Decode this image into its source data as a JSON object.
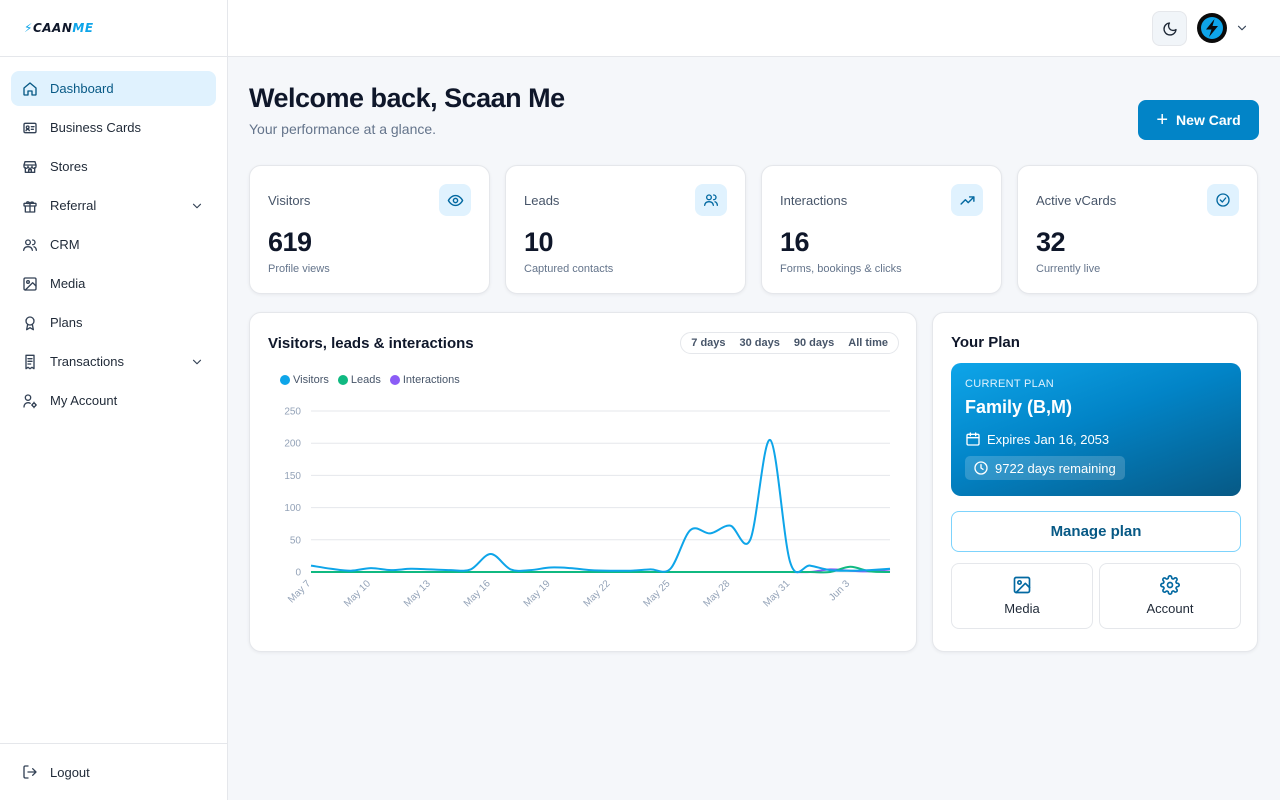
{
  "brand": {
    "logo_bolt": "⚡",
    "logo_main": "CAAN",
    "logo_accent": "ME"
  },
  "sidebar": {
    "items": [
      {
        "label": "Dashboard",
        "icon": "home-icon",
        "active": true
      },
      {
        "label": "Business Cards",
        "icon": "id-card-icon"
      },
      {
        "label": "Stores",
        "icon": "store-icon"
      },
      {
        "label": "Referral",
        "icon": "gift-icon",
        "expandable": true
      },
      {
        "label": "CRM",
        "icon": "users-icon"
      },
      {
        "label": "Media",
        "icon": "image-icon"
      },
      {
        "label": "Plans",
        "icon": "award-icon"
      },
      {
        "label": "Transactions",
        "icon": "receipt-icon",
        "expandable": true
      },
      {
        "label": "My Account",
        "icon": "user-cog-icon"
      }
    ],
    "logout_label": "Logout"
  },
  "header": {
    "title": "Welcome back, Scaan Me",
    "subtitle": "Your performance at a glance.",
    "new_card_label": "New Card"
  },
  "stats": [
    {
      "label": "Visitors",
      "value": "619",
      "sub": "Profile views",
      "icon": "eye-icon"
    },
    {
      "label": "Leads",
      "value": "10",
      "sub": "Captured contacts",
      "icon": "users-icon"
    },
    {
      "label": "Interactions",
      "value": "16",
      "sub": "Forms, bookings & clicks",
      "icon": "trending-up-icon"
    },
    {
      "label": "Active vCards",
      "value": "32",
      "sub": "Currently live",
      "icon": "check-circle-icon"
    }
  ],
  "chart": {
    "title": "Visitors, leads & interactions",
    "ranges": [
      "7 days",
      "30 days",
      "90 days",
      "All time"
    ]
  },
  "chart_data": {
    "type": "line",
    "ylim": [
      0,
      250
    ],
    "yticks": [
      0,
      50,
      100,
      150,
      200,
      250
    ],
    "xtick_labels": [
      "May 7",
      "May 10",
      "May 13",
      "May 16",
      "May 19",
      "May 22",
      "May 25",
      "May 28",
      "May 31",
      "Jun 3"
    ],
    "x": [
      "May 7",
      "May 8",
      "May 9",
      "May 10",
      "May 11",
      "May 12",
      "May 13",
      "May 14",
      "May 15",
      "May 16",
      "May 17",
      "May 18",
      "May 19",
      "May 20",
      "May 21",
      "May 22",
      "May 23",
      "May 24",
      "May 25",
      "May 26",
      "May 27",
      "May 28",
      "May 29",
      "May 30",
      "May 31",
      "Jun 1",
      "Jun 2",
      "Jun 3",
      "Jun 4",
      "Jun 5"
    ],
    "series": [
      {
        "name": "Visitors",
        "color": "#0ea5e9",
        "values": [
          10,
          5,
          2,
          6,
          3,
          5,
          4,
          3,
          4,
          28,
          4,
          3,
          7,
          6,
          3,
          2,
          2,
          4,
          5,
          65,
          60,
          72,
          50,
          205,
          15,
          10,
          3,
          2,
          3,
          5
        ]
      },
      {
        "name": "Leads",
        "color": "#10b981",
        "values": [
          0,
          0,
          0,
          0,
          0,
          0,
          0,
          0,
          0,
          0,
          0,
          0,
          0,
          0,
          0,
          0,
          0,
          0,
          0,
          0,
          0,
          0,
          0,
          0,
          0,
          0,
          0,
          8,
          1,
          0
        ]
      },
      {
        "name": "Interactions",
        "color": "#8b5cf6",
        "values": [
          0,
          0,
          0,
          0,
          0,
          0,
          0,
          0,
          0,
          0,
          0,
          0,
          0,
          0,
          0,
          0,
          0,
          0,
          0,
          0,
          0,
          0,
          0,
          0,
          0,
          0,
          4,
          2,
          1,
          4
        ]
      }
    ]
  },
  "plan": {
    "title": "Your Plan",
    "caption": "CURRENT PLAN",
    "name": "Family (B,M)",
    "expires": "Expires Jan 16, 2053",
    "days_remaining": "9722 days remaining",
    "manage_label": "Manage plan",
    "tiles": [
      {
        "label": "Media",
        "icon": "image-icon"
      },
      {
        "label": "Account",
        "icon": "gear-icon"
      }
    ]
  },
  "colors": {
    "accent": "#0284c7",
    "accent_light": "#e0f2fe"
  }
}
